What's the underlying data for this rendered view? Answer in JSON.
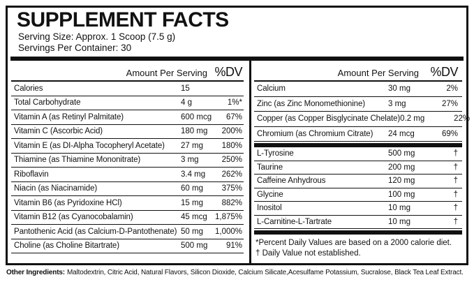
{
  "header": {
    "title": "SUPPLEMENT FACTS",
    "serving_size": "Serving Size: Approx. 1 Scoop (7.5 g)",
    "servings_per_container": "Servings Per Container: 30"
  },
  "left_table": {
    "amount_header": "Amount Per Serving",
    "dv_header": "%DV",
    "rows": [
      {
        "name": "Calories",
        "amount": "15",
        "dv": ""
      },
      {
        "name": "Total Carbohydrate",
        "amount": "4 g",
        "dv": "1%*"
      },
      {
        "name": "Vitamin A (as Retinyl Palmitate)",
        "amount": "600 mcg",
        "dv": "67%"
      },
      {
        "name": "Vitamin C (Ascorbic Acid)",
        "amount": "180 mg",
        "dv": "200%"
      },
      {
        "name": "Vitamin E (as DI-Alpha Tocopheryl Acetate)",
        "amount": "27 mg",
        "dv": "180%"
      },
      {
        "name": "Thiamine (as Thiamine Mononitrate)",
        "amount": "3 mg",
        "dv": "250%"
      },
      {
        "name": "Riboflavin",
        "amount": "3.4 mg",
        "dv": "262%"
      },
      {
        "name": "Niacin (as Niacinamide)",
        "amount": "60 mg",
        "dv": "375%"
      },
      {
        "name": "Vitamin B6 (as Pyridoxine HCl)",
        "amount": "15 mg",
        "dv": "882%"
      },
      {
        "name": "Vitamin B12 (as Cyanocobalamin)",
        "amount": "45 mcg",
        "dv": "1,875%"
      },
      {
        "name": "Pantothenic Acid (as Calcium-D-Pantothenate)",
        "amount": "50 mg",
        "dv": "1,000%"
      },
      {
        "name": "Choline (as Choline Bitartrate)",
        "amount": "500 mg",
        "dv": "91%"
      }
    ]
  },
  "right_table": {
    "amount_header": "Amount Per Serving",
    "dv_header": "%DV",
    "rows_dv": [
      {
        "name": "Calcium",
        "amount": "30 mg",
        "dv": "2%"
      },
      {
        "name": "Zinc (as Zinc Monomethionine)",
        "amount": "3 mg",
        "dv": "27%"
      },
      {
        "name": "Copper (as Copper Bisglycinate Chelate)",
        "amount": "0.2 mg",
        "dv": "22%"
      },
      {
        "name": "Chromium (as Chromium Citrate)",
        "amount": "24 mcg",
        "dv": "69%"
      }
    ],
    "rows_no_dv": [
      {
        "name": "L-Tyrosine",
        "amount": "500 mg",
        "dv": "†"
      },
      {
        "name": "Taurine",
        "amount": "200 mg",
        "dv": "†"
      },
      {
        "name": "Caffeine Anhydrous",
        "amount": "120 mg",
        "dv": "†"
      },
      {
        "name": "Glycine",
        "amount": "100 mg",
        "dv": "†"
      },
      {
        "name": "Inositol",
        "amount": "10 mg",
        "dv": "†"
      },
      {
        "name": "L-Carnitine-L-Tartrate",
        "amount": "10 mg",
        "dv": "†"
      }
    ],
    "footnotes": [
      "*Percent Daily Values are based on a 2000 calorie diet.",
      "† Daily Value not established."
    ]
  },
  "footer": {
    "other_ingredients_label": "Other Ingredients:",
    "other_ingredients_text": "Maltodextrin, Citric Acid, Natural Flavors, Silicon Dioxide, Calcium Silicate,Acesulfame Potassium, Sucralose, Black Tea Leaf Extract."
  },
  "colors": {
    "ink": "#111111",
    "background": "#ffffff"
  }
}
